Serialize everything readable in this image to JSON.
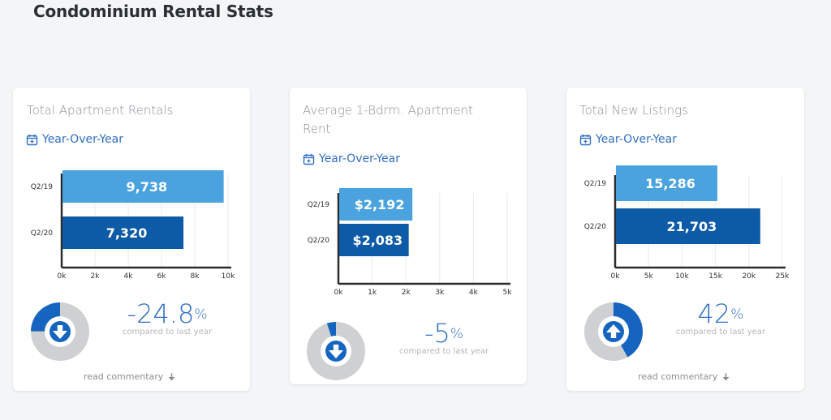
{
  "page": {
    "title": "Condominium Rental Stats"
  },
  "colors": {
    "light_bar": "#4aa3df",
    "dark_bar": "#0d5aa7",
    "accent": "#2f6fc4",
    "donut_gray": "#cfd0d1",
    "donut_blue": "#1565c0"
  },
  "cards": [
    {
      "title": "Total Apartment Rentals",
      "period": "Year-Over-Year",
      "percent": "-24.8",
      "percent_symbol": "%",
      "comparison": "compared to last year",
      "commentary_link": "read commentary",
      "trend": "down",
      "change_fraction": 0.248
    },
    {
      "title": "Average 1-Bdrm. Apartment Rent",
      "period": "Year-Over-Year",
      "percent": "-5",
      "percent_symbol": "%",
      "comparison": "compared to last year",
      "trend": "down",
      "change_fraction": 0.05
    },
    {
      "title": "Total New Listings",
      "period": "Year-Over-Year",
      "percent": "42",
      "percent_symbol": "%",
      "comparison": "compared to last year",
      "commentary_link": "read commentary",
      "trend": "up",
      "change_fraction": 0.42
    }
  ],
  "chart_data": [
    {
      "type": "bar",
      "orientation": "horizontal",
      "categories": [
        "Q2/19",
        "Q2/20"
      ],
      "values": [
        9738,
        7320
      ],
      "value_labels": [
        "9,738",
        "7,320"
      ],
      "xlim": [
        0,
        10000
      ],
      "ticks": [
        0,
        2000,
        4000,
        6000,
        8000,
        10000
      ],
      "tick_labels": [
        "0k",
        "2k",
        "4k",
        "6k",
        "8k",
        "10k"
      ]
    },
    {
      "type": "bar",
      "orientation": "horizontal",
      "categories": [
        "Q2/19",
        "Q2/20"
      ],
      "values": [
        2192,
        2083
      ],
      "value_labels": [
        "$2,192",
        "$2,083"
      ],
      "xlim": [
        0,
        5000
      ],
      "ticks": [
        0,
        1000,
        2000,
        3000,
        4000,
        5000
      ],
      "tick_labels": [
        "0k",
        "1k",
        "2k",
        "3k",
        "4k",
        "5k"
      ]
    },
    {
      "type": "bar",
      "orientation": "horizontal",
      "categories": [
        "Q2/19",
        "Q2/20"
      ],
      "values": [
        15286,
        21703
      ],
      "value_labels": [
        "15,286",
        "21,703"
      ],
      "xlim": [
        0,
        25000
      ],
      "ticks": [
        0,
        5000,
        10000,
        15000,
        20000,
        25000
      ],
      "tick_labels": [
        "0k",
        "5k",
        "10k",
        "15k",
        "20k",
        "25k"
      ]
    }
  ]
}
